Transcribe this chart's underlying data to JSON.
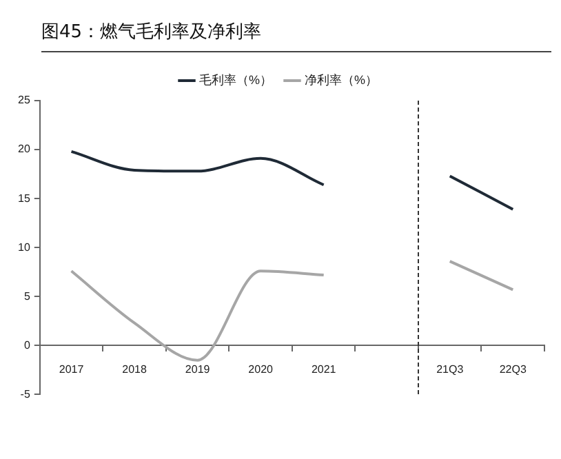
{
  "chart_data": {
    "type": "line",
    "title": "图45：燃气毛利率及净利率",
    "categories": [
      "2017",
      "2018",
      "2019",
      "2020",
      "2021",
      null,
      "21Q3",
      "22Q3"
    ],
    "series": [
      {
        "name": "毛利率（%）",
        "color": "#1f2a36",
        "values": [
          19.8,
          17.9,
          17.8,
          19.1,
          16.4,
          null,
          17.3,
          13.9
        ]
      },
      {
        "name": "净利率（%）",
        "color": "#a6a6a6",
        "values": [
          7.6,
          2.3,
          -1.5,
          7.6,
          7.2,
          null,
          8.6,
          5.7
        ]
      }
    ],
    "ylim": [
      -5,
      25
    ],
    "yticks": [
      -5,
      0,
      5,
      10,
      15,
      20,
      25
    ],
    "grid": false,
    "legend": "top",
    "marker": "none",
    "line_style": "solid"
  }
}
